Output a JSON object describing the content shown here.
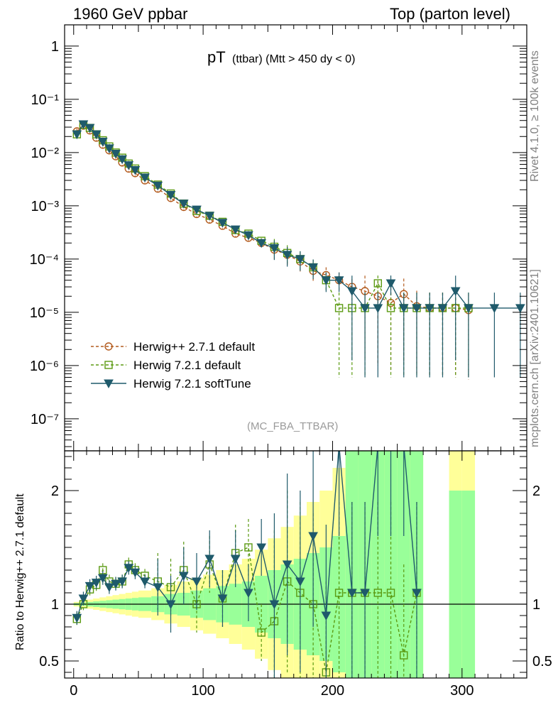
{
  "header": {
    "left": "1960 GeV ppbar",
    "right": "Top (parton level)"
  },
  "side_labels": {
    "rivet": "Rivet 4.1.0, ≥ 100k events",
    "mcplots": "mcplots.cern.ch [arXiv:2401.10621]"
  },
  "colors": {
    "herwigpp": "#b35b1e",
    "herwig721": "#5b9a12",
    "softtune": "#1f5a6b",
    "band_yellow": "#ffff99",
    "band_green": "#99ff99"
  },
  "chart_data": [
    {
      "type": "line",
      "panel": "main",
      "title": "pT",
      "title_sub": "(ttbar) (Mtt > 450 dy < 0)",
      "watermark": "(MC_FBA_TTBAR)",
      "xlabel": "",
      "ylabel": "",
      "yscale": "log",
      "ylim": [
        2.5e-08,
        2.5
      ],
      "xlim": [
        -7,
        350
      ],
      "y_ticks": [
        {
          "label": "1",
          "exp": 0
        },
        {
          "label": "10⁻¹",
          "exp": -1
        },
        {
          "label": "10⁻²",
          "exp": -2
        },
        {
          "label": "10⁻³",
          "exp": -3
        },
        {
          "label": "10⁻⁴",
          "exp": -4
        },
        {
          "label": "10⁻⁵",
          "exp": -5
        },
        {
          "label": "10⁻⁶",
          "exp": -6
        },
        {
          "label": "10⁻⁷",
          "exp": -7
        }
      ],
      "legend": [
        {
          "key": "herwigpp",
          "label": "Herwig++ 2.7.1 default",
          "marker": "circle",
          "style": "dashed"
        },
        {
          "key": "herwig721",
          "label": "Herwig 7.2.1 default",
          "marker": "square",
          "style": "dashed"
        },
        {
          "key": "softtune",
          "label": "Herwig 7.2.1 softTune",
          "marker": "triangle-down",
          "style": "solid"
        }
      ],
      "series": [
        {
          "key": "herwigpp",
          "name": "Herwig++ 2.7.1 default",
          "x": [
            2.5,
            7.5,
            12.5,
            17.5,
            22.5,
            27.5,
            32.5,
            37.5,
            42.5,
            47.5,
            55,
            65,
            75,
            85,
            95,
            105,
            115,
            125,
            135,
            145,
            155,
            165,
            175,
            185,
            195,
            205,
            215,
            225,
            235,
            245,
            255,
            265,
            275,
            285,
            295,
            305
          ],
          "y": [
            0.025,
            0.032,
            0.026,
            0.019,
            0.014,
            0.011,
            0.0085,
            0.0065,
            0.005,
            0.0041,
            0.003,
            0.0021,
            0.0014,
            0.00095,
            0.0007,
            0.00055,
            0.00042,
            0.0003,
            0.00025,
            0.0002,
            0.00015,
            0.00012,
            9e-05,
            6e-05,
            5e-05,
            4e-05,
            3e-05,
            2.5e-05,
            2e-05,
            1.5e-05,
            2.2e-05,
            1.3e-05,
            1.2e-05,
            1.2e-05,
            1.2e-05,
            1.1e-05
          ]
        },
        {
          "key": "herwig721",
          "name": "Herwig 7.2.1 default",
          "x": [
            2.5,
            7.5,
            12.5,
            17.5,
            22.5,
            27.5,
            32.5,
            37.5,
            42.5,
            47.5,
            55,
            65,
            75,
            85,
            95,
            105,
            115,
            125,
            135,
            145,
            155,
            165,
            175,
            185,
            195,
            205,
            215,
            225,
            235,
            245,
            255,
            265,
            275,
            285,
            295,
            305
          ],
          "y": [
            0.022,
            0.033,
            0.029,
            0.022,
            0.017,
            0.013,
            0.01,
            0.008,
            0.0062,
            0.005,
            0.0036,
            0.0025,
            0.0017,
            0.0011,
            0.0008,
            0.00065,
            0.0005,
            0.00035,
            0.0003,
            0.00022,
            0.00017,
            0.00013,
            0.0001,
            7e-05,
            4e-05,
            1.2e-05,
            1.2e-05,
            1.2e-05,
            3.5e-05,
            1.2e-05,
            1.2e-05,
            1.2e-05,
            1.2e-05,
            1.2e-05,
            1.2e-05,
            1.2e-05
          ]
        },
        {
          "key": "softtune",
          "name": "Herwig 7.2.1 softTune",
          "x": [
            2.5,
            7.5,
            12.5,
            17.5,
            22.5,
            27.5,
            32.5,
            37.5,
            42.5,
            47.5,
            55,
            65,
            75,
            85,
            95,
            105,
            115,
            125,
            135,
            145,
            155,
            165,
            175,
            185,
            195,
            205,
            215,
            225,
            235,
            245,
            255,
            265,
            275,
            285,
            295,
            305,
            325,
            345
          ],
          "y": [
            0.022,
            0.034,
            0.029,
            0.022,
            0.016,
            0.012,
            0.0095,
            0.0075,
            0.0058,
            0.0047,
            0.0034,
            0.0024,
            0.0016,
            0.0011,
            0.00085,
            0.00065,
            0.00048,
            0.00036,
            0.00028,
            0.0002,
            0.00016,
            0.00012,
            0.0001,
            7e-05,
            4e-05,
            4e-05,
            2.5e-05,
            1.2e-05,
            1.2e-05,
            3.5e-05,
            1.2e-05,
            1.2e-05,
            1.2e-05,
            1.2e-05,
            2.5e-05,
            1.2e-05,
            1.2e-05,
            1.2e-05
          ]
        }
      ]
    },
    {
      "type": "line",
      "panel": "ratio",
      "xlabel": "",
      "ylabel": "Ratio to Herwig++ 2.7.1 default",
      "ylim": [
        0.35,
        2.35
      ],
      "xlim": [
        -7,
        350
      ],
      "reference_line": 1,
      "y_ticks": [
        0.5,
        1,
        2
      ],
      "x_ticks": [
        0,
        100,
        200,
        300
      ],
      "bands": {
        "x": [
          2.5,
          7.5,
          12.5,
          17.5,
          22.5,
          27.5,
          32.5,
          37.5,
          42.5,
          47.5,
          55,
          65,
          75,
          85,
          95,
          105,
          115,
          125,
          135,
          145,
          155,
          165,
          175,
          185,
          195,
          205,
          215,
          225,
          235,
          245,
          255,
          265,
          275,
          285,
          295,
          305
        ],
        "yellow_halfwidth": [
          0.02,
          0.03,
          0.04,
          0.05,
          0.06,
          0.07,
          0.08,
          0.09,
          0.1,
          0.11,
          0.12,
          0.14,
          0.17,
          0.2,
          0.23,
          0.26,
          0.3,
          0.35,
          0.4,
          0.48,
          0.58,
          0.68,
          0.78,
          0.9,
          1.0,
          1.2,
          1.5,
          1.7,
          1.8,
          1.8,
          1.8,
          1.8,
          0,
          0,
          1.8,
          1.8
        ],
        "green_halfwidth": [
          0.01,
          0.015,
          0.02,
          0.025,
          0.03,
          0.035,
          0.04,
          0.045,
          0.05,
          0.055,
          0.06,
          0.07,
          0.09,
          0.1,
          0.12,
          0.14,
          0.16,
          0.18,
          0.2,
          0.25,
          0.3,
          0.35,
          0.4,
          0.45,
          0.5,
          0.6,
          1.5,
          1.7,
          1.8,
          1.8,
          1.8,
          1.8,
          0,
          0,
          1.0,
          1.0
        ]
      },
      "series": [
        {
          "key": "herwig721",
          "name": "Herwig 7.2.1 default",
          "x": [
            2.5,
            7.5,
            12.5,
            17.5,
            22.5,
            27.5,
            32.5,
            37.5,
            42.5,
            47.5,
            55,
            65,
            75,
            85,
            95,
            105,
            115,
            125,
            135,
            145,
            155,
            165,
            175,
            185,
            195,
            205,
            215,
            225,
            235,
            245,
            255,
            265
          ],
          "y": [
            0.87,
            1.0,
            1.13,
            1.17,
            1.3,
            1.2,
            1.18,
            1.2,
            1.35,
            1.3,
            1.25,
            1.2,
            1.15,
            1.3,
            1.0,
            1.35,
            1.05,
            1.45,
            1.5,
            0.75,
            0.85,
            1.2,
            1.1,
            1.0,
            0.4,
            1.1,
            1.1,
            1.1,
            1.1,
            1.1,
            0.55,
            1.1
          ]
        },
        {
          "key": "softtune",
          "name": "Herwig 7.2.1 softTune",
          "x": [
            2.5,
            7.5,
            12.5,
            17.5,
            22.5,
            27.5,
            32.5,
            37.5,
            42.5,
            47.5,
            55,
            65,
            75,
            85,
            95,
            105,
            115,
            125,
            135,
            145,
            155,
            165,
            175,
            185,
            195,
            205,
            215,
            225,
            235,
            245,
            255,
            265
          ],
          "y": [
            0.88,
            1.05,
            1.16,
            1.19,
            1.23,
            1.15,
            1.18,
            1.2,
            1.32,
            1.28,
            1.2,
            1.15,
            1.0,
            1.25,
            1.2,
            1.4,
            1.05,
            1.4,
            1.1,
            1.5,
            1.0,
            1.35,
            1.2,
            1.6,
            0.9,
            2.4,
            1.1,
            1.1,
            2.4,
            2.4,
            2.4,
            1.1
          ]
        }
      ]
    }
  ]
}
